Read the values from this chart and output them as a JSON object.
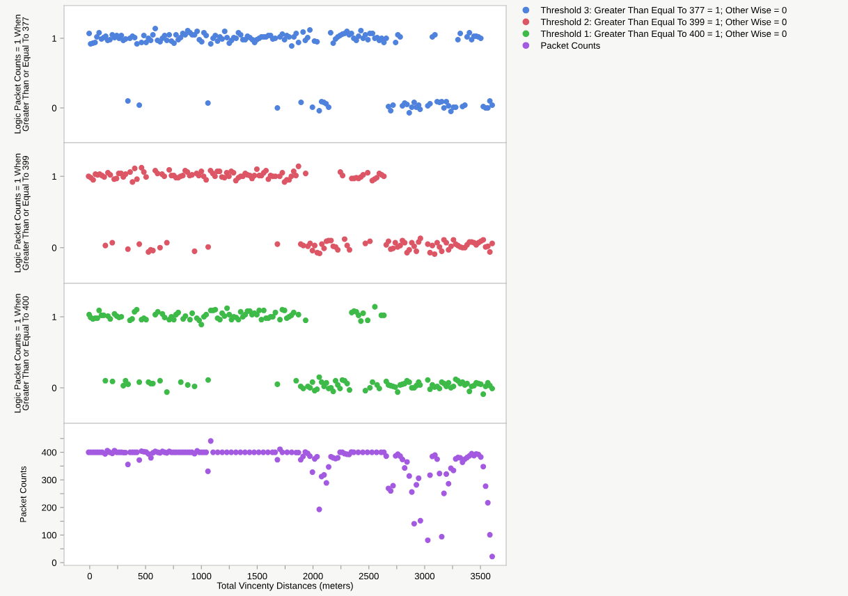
{
  "chart_data": [
    {
      "type": "scatter",
      "ylabel": "Logic Packet Counts = 1 When\nGreater Than or Equal To 377",
      "xlim": [
        -230,
        3730
      ],
      "ylim": [
        -0.5,
        1.47
      ],
      "yticks": [
        0,
        1
      ],
      "tick_labels": "y",
      "marker": "circle",
      "legend": "top right",
      "series": [
        {
          "name": "Threshold 3: Greater Than Equal To 377 = 1; Other Wise = 0",
          "color": "#4f82dd",
          "x": [
            -5,
            8,
            28,
            48,
            64,
            84,
            105,
            125,
            143,
            161,
            181,
            202,
            222,
            242,
            263,
            283,
            301,
            321,
            360,
            383,
            403,
            423,
            464,
            485,
            505,
            526,
            546,
            566,
            587,
            607,
            630,
            651,
            671,
            691,
            712,
            732,
            755,
            773,
            793,
            814,
            834,
            855,
            878,
            898,
            918,
            939,
            962,
            982,
            1003,
            1023,
            1043,
            1084,
            1105,
            1125,
            1145,
            1166,
            1186,
            1209,
            1230,
            1250,
            1270,
            1291,
            1311,
            1332,
            1352,
            1372,
            1393,
            1413,
            1434,
            1457,
            1477,
            1497,
            1518,
            1538,
            1559,
            1579,
            1600,
            1620,
            1640,
            1661,
            1704,
            1725,
            1745,
            1765,
            1786,
            1809,
            1829,
            1849,
            1870,
            1911,
            1931,
            1952,
            1972,
            2013,
            2036,
            2158,
            2181,
            2202,
            2222,
            2242,
            2263,
            2283,
            2304,
            2324,
            2344,
            2365,
            2388,
            2408,
            2429,
            2449,
            2469,
            2492,
            2510,
            2533,
            2554,
            2574,
            2594,
            2615,
            2635,
            2656,
            2740,
            2760,
            2781,
            3069,
            3092,
            3298,
            3319,
            3380,
            3401,
            3421,
            3442,
            3462,
            3482,
            3503,
            342,
            444,
            1059,
            1681,
            1893,
            1995,
            2056,
            2077,
            2097,
            2117,
            2140,
            2676,
            2696,
            2717,
            2801,
            2821,
            2842,
            2862,
            2885,
            2906,
            2926,
            2946,
            2959,
            3028,
            3048,
            3112,
            3133,
            3153,
            3173,
            3194,
            3214,
            3235,
            3258,
            3278,
            3339,
            3360,
            3525,
            3546,
            3566,
            3584,
            3605
          ],
          "values": [
            1.07,
            0.92,
            0.93,
            0.94,
            1.02,
            1.08,
            0.99,
            1.01,
            1.03,
            0.97,
            0.98,
            1.05,
            1.01,
            1.04,
            1.0,
            1.04,
            0.97,
            0.99,
            1.0,
            1.03,
            1.01,
            0.92,
            0.94,
            1.04,
            0.94,
            1.0,
            0.97,
            1.05,
            1.14,
            0.97,
            0.95,
            1.0,
            1.04,
            0.97,
            1.05,
            0.96,
            0.93,
            1.05,
            0.98,
            1.01,
            1.07,
            1.05,
            1.11,
            1.08,
            1.05,
            1.05,
            1.1,
            0.98,
            0.95,
            1.08,
            1.04,
            0.92,
            1.0,
            1.04,
            0.96,
            1.02,
            0.99,
            1.1,
            1.01,
            0.93,
            0.97,
            1.01,
            1.0,
            1.08,
            1.05,
            0.98,
            0.98,
            1.03,
            1.01,
            0.98,
            0.94,
            0.98,
            1.0,
            1.02,
            1.02,
            1.02,
            1.04,
            1.04,
            0.99,
            1.0,
            1.02,
            1.06,
            0.98,
            1.04,
            1.02,
            0.89,
            1.02,
            1.07,
            0.94,
            1.09,
            0.97,
            1.01,
            1.12,
            0.96,
            0.95,
            1.08,
            0.93,
            0.99,
            1.02,
            1.04,
            1.06,
            1.07,
            1.1,
            1.05,
            1.07,
            1.0,
            0.97,
            1.03,
            1.11,
            1.0,
            1.05,
            0.98,
            1.07,
            1.07,
            1.0,
            1.01,
            0.97,
            1.0,
            0.94,
            1.0,
            0.94,
            1.05,
            1.02,
            1.02,
            1.05,
            0.98,
            1.07,
            1.02,
            1.08,
            0.98,
            1.03,
            1.03,
            1.02,
            1.0,
            0.1,
            0.04,
            0.07,
            0.0,
            0.08,
            0.01,
            -0.04,
            0.09,
            0.08,
            0.06,
            0.01,
            0.02,
            -0.04,
            0.04,
            0.03,
            0.07,
            0.05,
            -0.07,
            0.01,
            0.08,
            0.01,
            0.04,
            -0.02,
            0.03,
            0.06,
            0.09,
            0.08,
            0.09,
            0.0,
            0.09,
            0.03,
            -0.05,
            0.01,
            0.01,
            0.02,
            0.04,
            0.02,
            0.0,
            0.0,
            0.1,
            0.04
          ]
        }
      ]
    },
    {
      "type": "scatter",
      "ylabel": "Logic Packet Counts = 1 When\nGreater Than or Equal To 399",
      "xlim": [
        -230,
        3730
      ],
      "ylim": [
        -0.5,
        1.47
      ],
      "yticks": [
        0,
        1
      ],
      "tick_labels": "y",
      "marker": "circle",
      "series": [
        {
          "name": "Threshold 2: Greater Than Equal To 399 = 1; Other Wise = 0",
          "color": "#dc5666",
          "x": [
            -10,
            10,
            31,
            51,
            71,
            89,
            110,
            130,
            163,
            184,
            219,
            240,
            260,
            281,
            301,
            321,
            362,
            383,
            403,
            423,
            464,
            485,
            505,
            587,
            607,
            648,
            668,
            712,
            732,
            753,
            773,
            793,
            814,
            834,
            855,
            875,
            895,
            916,
            957,
            977,
            1000,
            1020,
            1043,
            1082,
            1102,
            1122,
            1143,
            1163,
            1184,
            1207,
            1227,
            1247,
            1268,
            1288,
            1309,
            1332,
            1352,
            1372,
            1393,
            1413,
            1434,
            1454,
            1475,
            1497,
            1518,
            1538,
            1559,
            1579,
            1600,
            1620,
            1640,
            1663,
            1702,
            1725,
            1745,
            1765,
            1786,
            1806,
            1827,
            1847,
            1870,
            1934,
            2245,
            2265,
            2347,
            2367,
            2388,
            2408,
            2429,
            2449,
            2490,
            2531,
            2551,
            2571,
            2594,
            2615,
            2635,
            140,
            202,
            342,
            444,
            526,
            546,
            566,
            630,
            691,
            939,
            1061,
            1681,
            1890,
            1913,
            1954,
            1974,
            1995,
            2015,
            2038,
            2059,
            2079,
            2099,
            2120,
            2140,
            2161,
            2181,
            2202,
            2222,
            2283,
            2306,
            2327,
            2469,
            2510,
            2656,
            2676,
            2696,
            2717,
            2737,
            2758,
            2781,
            2801,
            2821,
            2842,
            2862,
            2885,
            2906,
            2926,
            2946,
            2962,
            3028,
            3048,
            3069,
            3089,
            3112,
            3133,
            3153,
            3173,
            3194,
            3214,
            3237,
            3258,
            3278,
            3298,
            3319,
            3339,
            3360,
            3380,
            3401,
            3421,
            3442,
            3462,
            3482,
            3503,
            3525,
            3546,
            3566,
            3584,
            3605
          ],
          "values": [
            1.0,
            0.98,
            0.95,
            1.03,
            1.02,
            1.03,
            1.01,
            0.99,
            1.05,
            1.02,
            0.96,
            0.97,
            1.04,
            1.04,
            0.99,
            1.03,
            1.06,
            0.92,
            1.11,
            0.96,
            1.12,
            1.06,
            0.99,
            1.08,
            1.04,
            1.03,
            1.0,
            1.09,
            1.01,
            1.01,
            0.98,
            0.98,
            1.0,
            1.01,
            1.08,
            1.06,
            1.01,
            1.02,
            1.04,
            1.01,
            1.07,
            1.0,
            0.95,
            1.08,
            1.04,
            1.0,
            1.07,
            1.07,
            0.99,
            0.98,
            1.05,
            1.0,
            1.07,
            1.05,
            0.94,
            0.98,
            1.0,
            1.0,
            1.04,
            1.02,
            1.01,
            0.97,
            1.01,
            1.1,
            1.01,
            1.01,
            1.05,
            1.08,
            0.96,
            1.01,
            1.0,
            1.0,
            1.0,
            1.05,
            0.92,
            0.95,
            0.95,
            1.0,
            1.07,
            1.01,
            1.14,
            1.04,
            1.06,
            1.01,
            0.97,
            0.97,
            0.98,
            0.97,
            0.99,
            1.02,
            1.05,
            0.94,
            0.96,
            0.98,
            1.04,
            1.02,
            1.0,
            0.03,
            0.07,
            -0.02,
            0.05,
            -0.06,
            -0.03,
            -0.04,
            0.0,
            0.07,
            -0.05,
            0.01,
            0.05,
            0.05,
            0.03,
            0.02,
            0.06,
            -0.04,
            0.03,
            -0.07,
            -0.08,
            0.05,
            -0.01,
            0.09,
            0.1,
            0.1,
            0.02,
            0.01,
            -0.03,
            0.12,
            0.03,
            -0.03,
            0.06,
            0.09,
            0.04,
            0.09,
            -0.02,
            -0.01,
            0.07,
            0.01,
            0.03,
            0.1,
            0.07,
            -0.07,
            -0.03,
            0.07,
            0.02,
            -0.05,
            0.08,
            0.13,
            0.05,
            -0.07,
            0.03,
            -0.09,
            0.07,
            0.01,
            -0.05,
            0.11,
            0.07,
            -0.03,
            0.02,
            0.11,
            0.05,
            0.03,
            0.01,
            0.0,
            0.0,
            0.04,
            0.08,
            0.08,
            0.07,
            0.04,
            0.07,
            0.09,
            0.11,
            0.01,
            0.02,
            -0.06,
            0.06
          ]
        }
      ]
    },
    {
      "type": "scatter",
      "ylabel": "Logic Packet Counts = 1 When\nGreater Than or Equal To 400",
      "xlim": [
        -230,
        3730
      ],
      "ylim": [
        -0.5,
        1.47
      ],
      "yticks": [
        0,
        1
      ],
      "tick_labels": "y",
      "marker": "circle",
      "series": [
        {
          "name": "Threshold 1: Greater Than Equal To 400 = 1; Other Wise = 0",
          "color": "#3dba48",
          "x": [
            -5,
            8,
            28,
            48,
            69,
            84,
            105,
            125,
            163,
            184,
            222,
            242,
            263,
            283,
            360,
            380,
            401,
            421,
            464,
            485,
            505,
            587,
            610,
            651,
            671,
            712,
            732,
            753,
            773,
            793,
            837,
            857,
            898,
            918,
            959,
            980,
            1000,
            1023,
            1043,
            1084,
            1105,
            1125,
            1145,
            1166,
            1186,
            1207,
            1230,
            1250,
            1270,
            1291,
            1311,
            1332,
            1352,
            1372,
            1393,
            1413,
            1434,
            1454,
            1475,
            1497,
            1518,
            1538,
            1559,
            1579,
            1600,
            1620,
            1640,
            1663,
            1704,
            1725,
            1745,
            1765,
            1786,
            1806,
            1827,
            1870,
            1934,
            2347,
            2367,
            2388,
            2408,
            2429,
            2449,
            2490,
            2554,
            2612,
            2635,
            140,
            204,
            301,
            321,
            344,
            444,
            526,
            546,
            566,
            630,
            691,
            816,
            878,
            939,
            1061,
            1681,
            1849,
            1890,
            1913,
            1954,
            1974,
            1995,
            2015,
            2036,
            2056,
            2077,
            2099,
            2120,
            2140,
            2161,
            2181,
            2202,
            2222,
            2242,
            2263,
            2283,
            2306,
            2327,
            2469,
            2510,
            2533,
            2574,
            2594,
            2656,
            2676,
            2696,
            2717,
            2737,
            2758,
            2781,
            2801,
            2821,
            2842,
            2862,
            2885,
            2906,
            2926,
            2946,
            2959,
            3028,
            3048,
            3069,
            3089,
            3112,
            3133,
            3153,
            3173,
            3194,
            3214,
            3235,
            3258,
            3278,
            3298,
            3319,
            3339,
            3360,
            3380,
            3401,
            3421,
            3442,
            3462,
            3482,
            3503,
            3525,
            3546,
            3566,
            3584,
            3605
          ],
          "values": [
            1.03,
            0.99,
            0.97,
            0.98,
            0.98,
            1.09,
            1.02,
            1.02,
            1.01,
            0.97,
            1.04,
            1.01,
            0.99,
            1.0,
            0.95,
            0.97,
            1.07,
            1.1,
            0.96,
            0.98,
            0.96,
            1.03,
            1.07,
            1.04,
            0.99,
            0.96,
            1.0,
            0.96,
            1.03,
            1.06,
            0.97,
            1.01,
            0.96,
            1.05,
            0.98,
            0.95,
            0.89,
            1.0,
            1.03,
            1.09,
            1.09,
            1.1,
            0.98,
            0.96,
            1.05,
            1.01,
            1.12,
            1.03,
            0.96,
            1.0,
            0.99,
            0.96,
            1.07,
            1.0,
            1.03,
            1.08,
            1.08,
            1.03,
            1.05,
            1.03,
            1.09,
            0.96,
            1.09,
            0.98,
            0.98,
            1.0,
            1.0,
            1.06,
            0.96,
            1.1,
            1.09,
            0.98,
            1.0,
            1.02,
            1.06,
            1.03,
            0.95,
            1.06,
            1.08,
            1.07,
            1.02,
            0.94,
            1.05,
            0.95,
            1.14,
            1.02,
            1.02,
            0.1,
            0.09,
            0.03,
            0.1,
            0.05,
            0.08,
            0.08,
            0.06,
            0.06,
            0.1,
            -0.06,
            0.08,
            0.04,
            0.02,
            0.11,
            0.05,
            0.1,
            0.02,
            -0.01,
            0.02,
            0.0,
            0.08,
            -0.04,
            -0.02,
            0.15,
            0.08,
            0.02,
            0.07,
            -0.01,
            0.0,
            -0.05,
            0.1,
            0.04,
            -0.01,
            0.11,
            0.1,
            0.06,
            -0.03,
            -0.04,
            0.0,
            0.08,
            0.04,
            -0.01,
            0.09,
            0.04,
            0.03,
            0.02,
            0.01,
            -0.06,
            0.04,
            0.05,
            0.06,
            0.1,
            0.08,
            0.0,
            0.0,
            0.03,
            0.08,
            0.04,
            0.11,
            -0.02,
            0.04,
            0.01,
            0.02,
            -0.01,
            0.08,
            0.06,
            0.02,
            0.07,
            0.0,
            0.02,
            0.12,
            0.1,
            0.06,
            0.08,
            0.04,
            0.06,
            -0.05,
            0.02,
            0.03,
            0.07,
            0.06,
            0.05,
            -0.09,
            0.02,
            0.07,
            0.03,
            -0.01
          ]
        }
      ]
    },
    {
      "type": "scatter",
      "xlabel": "Total Vincenty Distances (meters)",
      "ylabel": "Packet Counts",
      "xlim": [
        -230,
        3730
      ],
      "ylim": [
        -10,
        505
      ],
      "marker": "circle",
      "xticks": [
        0,
        {
          "value": 250,
          "label": null
        },
        500,
        {
          "value": 750,
          "label": null
        },
        1000,
        {
          "value": 1250,
          "label": null
        },
        1500,
        {
          "value": 1750,
          "label": null
        },
        2000,
        {
          "value": 2250,
          "label": null
        },
        2500,
        {
          "value": 2750,
          "label": null
        },
        3000,
        {
          "value": 3250,
          "label": null
        },
        3500
      ],
      "yticks": [
        0,
        {
          "value": 50,
          "label": null
        },
        100,
        {
          "value": 150,
          "label": null
        },
        200,
        {
          "value": 250,
          "label": null
        },
        300,
        {
          "value": 350,
          "label": null
        },
        400,
        {
          "value": 450,
          "label": null
        }
      ],
      "series": [
        {
          "name": "Packet Counts",
          "color": "#a35ae0",
          "x": [
            -10,
            10,
            31,
            51,
            71,
            92,
            112,
            138,
            158,
            179,
            202,
            222,
            242,
            263,
            283,
            304,
            321,
            342,
            362,
            383,
            403,
            423,
            444,
            464,
            485,
            505,
            526,
            548,
            566,
            587,
            610,
            630,
            651,
            671,
            691,
            712,
            732,
            753,
            773,
            794,
            814,
            835,
            855,
            876,
            896,
            916,
            939,
            962,
            982,
            1003,
            1023,
            1043,
            1059,
            1084,
            1105,
            1146,
            1187,
            1228,
            1268,
            1309,
            1350,
            1391,
            1432,
            1473,
            1514,
            1555,
            1596,
            1637,
            1661,
            1681,
            1704,
            1725,
            1768,
            1809,
            1849,
            1870,
            1890,
            1911,
            1931,
            1952,
            1972,
            1995,
            2015,
            2036,
            2056,
            2077,
            2099,
            2120,
            2140,
            2161,
            2181,
            2202,
            2222,
            2242,
            2263,
            2283,
            2304,
            2324,
            2344,
            2365,
            2405,
            2446,
            2487,
            2528,
            2569,
            2610,
            2635,
            2656,
            2676,
            2696,
            2717,
            2740,
            2760,
            2781,
            2801,
            2821,
            2842,
            2862,
            2885,
            2906,
            2926,
            2946,
            2962,
            3028,
            3048,
            3069,
            3092,
            3112,
            3133,
            3153,
            3173,
            3194,
            3214,
            3235,
            3258,
            3278,
            3298,
            3319,
            3339,
            3360,
            3380,
            3401,
            3421,
            3442,
            3462,
            3482,
            3503,
            3525,
            3546,
            3566,
            3584,
            3605
          ],
          "values": [
            400,
            400,
            400,
            400,
            400,
            400,
            400,
            394,
            406,
            400,
            396,
            406,
            400,
            400,
            400,
            399,
            399,
            356,
            400,
            400,
            400,
            400,
            372,
            404,
            402,
            401,
            394,
            380,
            398,
            403,
            400,
            398,
            403,
            400,
            398,
            403,
            400,
            400,
            400,
            400,
            400,
            400,
            400,
            400,
            400,
            400,
            395,
            405,
            400,
            400,
            400,
            400,
            331,
            441,
            400,
            400,
            400,
            400,
            400,
            400,
            400,
            400,
            400,
            400,
            400,
            400,
            400,
            400,
            400,
            373,
            411,
            400,
            400,
            400,
            399,
            399,
            373,
            385,
            401,
            396,
            386,
            328,
            376,
            384,
            193,
            312,
            318,
            289,
            347,
            384,
            380,
            377,
            380,
            400,
            400,
            395,
            393,
            392,
            401,
            400,
            400,
            400,
            400,
            400,
            400,
            400,
            400,
            386,
            269,
            260,
            279,
            387,
            393,
            386,
            374,
            343,
            365,
            314,
            256,
            141,
            282,
            306,
            152,
            81,
            317,
            385,
            390,
            375,
            323,
            94,
            251,
            321,
            286,
            342,
            334,
            376,
            381,
            380,
            364,
            375,
            381,
            387,
            395,
            388,
            394,
            392,
            383,
            348,
            277,
            217,
            101,
            22
          ]
        }
      ]
    }
  ]
}
